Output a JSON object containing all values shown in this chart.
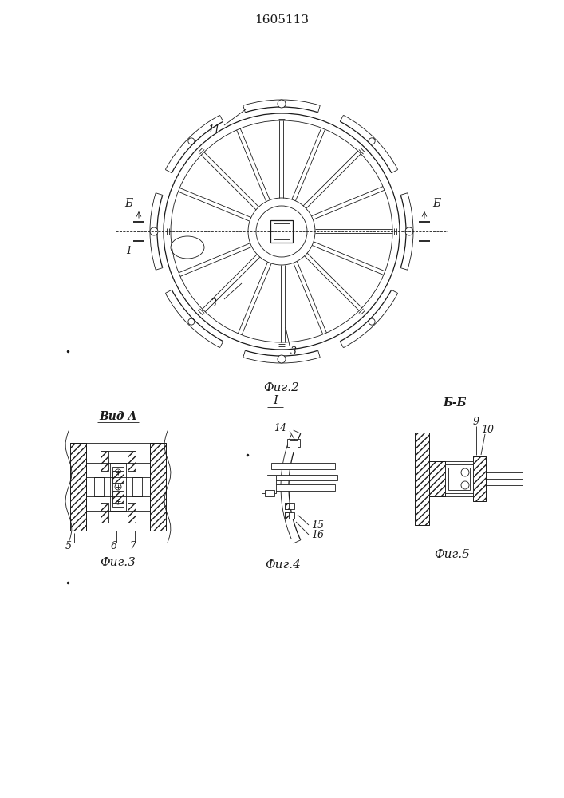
{
  "title": "1605113",
  "bg_color": "#ffffff",
  "line_color": "#1a1a1a",
  "fig2_label": "Фиг.2",
  "fig3_label": "Фиг.3",
  "fig4_label": "Фиг.4",
  "fig5_label": "Фиг.5",
  "vid_a_label": "Вид А",
  "bb_label": "Б-Б",
  "label_I": "I",
  "label_11": "11",
  "label_1": "1",
  "label_3a": "3",
  "label_3b": "3",
  "label_B_left": "Б",
  "label_B_right": "Б",
  "label_5": "5",
  "label_6": "6",
  "label_7": "7",
  "label_9": "9",
  "label_10": "10",
  "label_14": "14",
  "label_15": "15",
  "label_16": "16"
}
